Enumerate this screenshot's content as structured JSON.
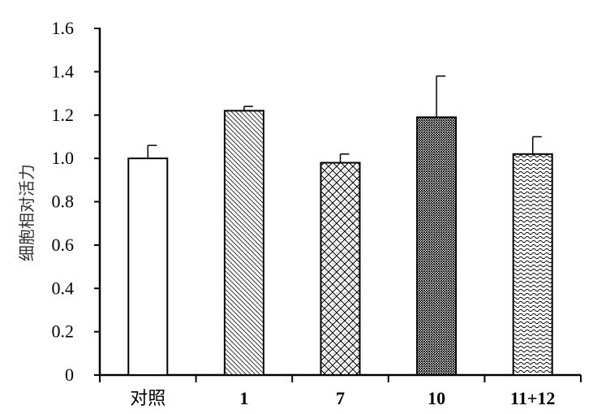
{
  "chart_data": {
    "type": "bar",
    "title": "",
    "xlabel": "",
    "ylabel": "细胞相对活力",
    "ylim": [
      0,
      1.6
    ],
    "yticks": [
      0,
      0.2,
      0.4,
      0.6,
      0.8,
      1.0,
      1.2,
      1.4,
      1.6
    ],
    "ytick_labels": [
      "0",
      "0.2",
      "0.4",
      "0.6",
      "0.8",
      "1.0",
      "1.2",
      "1.4",
      "1.6"
    ],
    "categories": [
      "对照",
      "1",
      "7",
      "10",
      "11+12"
    ],
    "values": [
      1.0,
      1.22,
      0.98,
      1.19,
      1.02
    ],
    "errors": [
      0.06,
      0.02,
      0.04,
      0.19,
      0.08
    ],
    "fill_patterns": [
      "none",
      "diagonal-lines",
      "crosshatch-diamond",
      "dense-dots",
      "wavy"
    ],
    "grid": false,
    "legend": "none"
  }
}
